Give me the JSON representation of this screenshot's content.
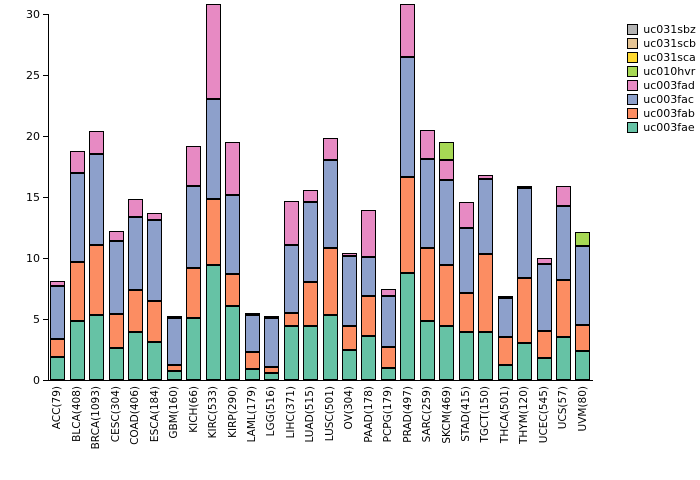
{
  "chart_data": {
    "type": "bar",
    "stacked": true,
    "title": "",
    "xlabel": "",
    "ylabel": "",
    "ylim": [
      0,
      30
    ],
    "yticks": [
      0,
      5,
      10,
      15,
      20,
      25,
      30
    ],
    "grid": false,
    "legend_position": "top-right",
    "categories": [
      "ACC(79)",
      "BLCA(408)",
      "BRCA(1093)",
      "CESC(304)",
      "COAD(406)",
      "ESCA(184)",
      "GBM(160)",
      "KICH(66)",
      "KIRC(533)",
      "KIRP(290)",
      "LAML(179)",
      "LGG(516)",
      "LIHC(371)",
      "LUAD(515)",
      "LUSC(501)",
      "OV(304)",
      "PAAD(178)",
      "PCPG(179)",
      "PRAD(497)",
      "SARC(259)",
      "SKCM(469)",
      "STAD(415)",
      "TGCT(150)",
      "THCA(501)",
      "THYM(120)",
      "UCEC(545)",
      "UCS(57)",
      "UVM(80)"
    ],
    "series": [
      {
        "name": "uc003fae",
        "color": "#66c2a5",
        "values": [
          1.9,
          4.8,
          5.3,
          2.6,
          3.9,
          3.1,
          0.7,
          5.1,
          9.4,
          6.1,
          0.9,
          0.6,
          4.4,
          4.4,
          5.3,
          2.5,
          3.6,
          1.0,
          8.8,
          4.8,
          4.4,
          3.9,
          3.9,
          1.2,
          3.0,
          1.8,
          3.5,
          2.4
        ]
      },
      {
        "name": "uc003fab",
        "color": "#fc8d62",
        "values": [
          1.5,
          4.9,
          5.8,
          2.8,
          3.5,
          3.4,
          0.5,
          4.1,
          5.4,
          2.6,
          1.4,
          0.5,
          1.1,
          3.6,
          5.5,
          1.9,
          3.3,
          1.7,
          7.8,
          6.0,
          5.0,
          3.2,
          6.4,
          2.3,
          5.4,
          2.2,
          4.7,
          2.1
        ]
      },
      {
        "name": "uc003fac",
        "color": "#8da0cb",
        "values": [
          4.3,
          7.3,
          7.4,
          6.0,
          6.0,
          6.6,
          3.9,
          6.7,
          8.2,
          6.5,
          3.0,
          4.0,
          5.6,
          6.6,
          7.2,
          5.8,
          3.2,
          4.2,
          9.9,
          7.3,
          7.0,
          5.4,
          6.2,
          3.2,
          7.3,
          5.5,
          6.1,
          6.5
        ]
      },
      {
        "name": "uc003fad",
        "color": "#e78ac3",
        "values": [
          0.4,
          1.8,
          1.9,
          0.8,
          1.4,
          0.6,
          0.1,
          3.3,
          7.8,
          4.3,
          0.1,
          0.1,
          3.6,
          1.0,
          1.8,
          0.2,
          3.8,
          0.6,
          4.3,
          2.4,
          1.6,
          2.1,
          0.3,
          0.2,
          0.1,
          0.5,
          1.6,
          0
        ]
      },
      {
        "name": "uc010hvr",
        "color": "#a6d854",
        "values": [
          0,
          0,
          0,
          0,
          0,
          0,
          0,
          0,
          0,
          0,
          0,
          0,
          0,
          0,
          0,
          0,
          0,
          0,
          0,
          0,
          1.5,
          0,
          0,
          0,
          0,
          0,
          0,
          1.1
        ]
      },
      {
        "name": "uc031sca",
        "color": "#ffd92f",
        "values": [
          0,
          0,
          0,
          0,
          0,
          0,
          0,
          0,
          0,
          0,
          0,
          0,
          0,
          0,
          0,
          0,
          0,
          0,
          0,
          0,
          0,
          0,
          0,
          0,
          0,
          0,
          0,
          0
        ]
      },
      {
        "name": "uc031scb",
        "color": "#e5c494",
        "values": [
          0,
          0,
          0,
          0,
          0,
          0,
          0,
          0,
          0,
          0,
          0,
          0,
          0,
          0,
          0,
          0,
          0,
          0,
          0,
          0,
          0,
          0,
          0,
          0,
          0,
          0,
          0,
          0
        ]
      },
      {
        "name": "uc031sbz",
        "color": "#b3b3b3",
        "values": [
          0,
          0,
          0,
          0,
          0,
          0,
          0,
          0,
          0,
          0,
          0,
          0,
          0,
          0,
          0,
          0,
          0,
          0,
          0,
          0,
          0,
          0,
          0,
          0,
          0,
          0,
          0,
          0
        ]
      }
    ]
  }
}
